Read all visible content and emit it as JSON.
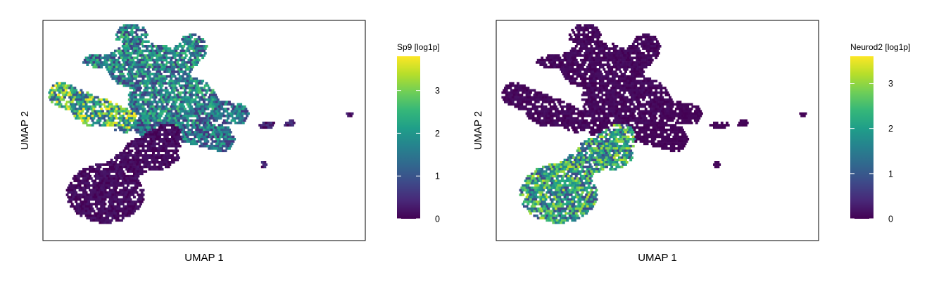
{
  "chart_data": [
    {
      "type": "heatmap",
      "subtype": "umap-hexbin",
      "xlabel": "UMAP 1",
      "ylabel": "UMAP 2",
      "colorbar": {
        "title": "Sp9 [log1p]",
        "range": [
          0,
          3.8
        ],
        "ticks": [
          0,
          1,
          2,
          3
        ],
        "colormap": "viridis"
      },
      "expression_regions": [
        {
          "region": "left arm",
          "level": 2.6
        },
        {
          "region": "upper central branch",
          "level": 1.8
        },
        {
          "region": "right branch",
          "level": 1.5
        },
        {
          "region": "lower lobe",
          "level": 0.15
        },
        {
          "region": "far-right islands",
          "level": 0.4
        }
      ]
    },
    {
      "type": "heatmap",
      "subtype": "umap-hexbin",
      "xlabel": "UMAP 1",
      "ylabel": "UMAP 2",
      "colorbar": {
        "title": "Neurod2 [log1p]",
        "range": [
          0,
          3.6
        ],
        "ticks": [
          0,
          1,
          2,
          3
        ],
        "colormap": "viridis"
      },
      "expression_regions": [
        {
          "region": "left arm",
          "level": 0.1
        },
        {
          "region": "upper central branch",
          "level": 0.1
        },
        {
          "region": "right branch",
          "level": 0.05
        },
        {
          "region": "lower lobe",
          "level": 2.1
        },
        {
          "region": "far-right islands",
          "level": 0.05
        }
      ]
    }
  ],
  "colors": {
    "viridis": [
      "#440154",
      "#482878",
      "#3e4989",
      "#31688e",
      "#26828e",
      "#1f9e89",
      "#35b779",
      "#6ece58",
      "#b5de2b",
      "#fde725"
    ],
    "frame": "#000000"
  }
}
